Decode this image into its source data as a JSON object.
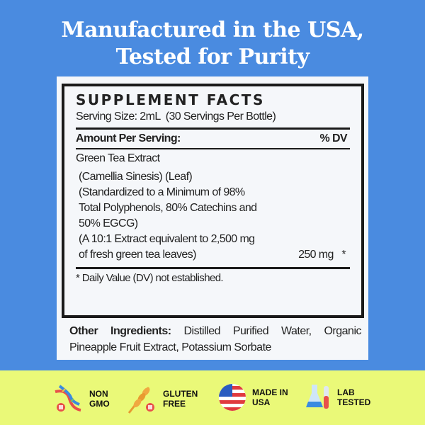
{
  "headline": {
    "line1": "Manufactured in the USA,",
    "line2": "Tested for Purity"
  },
  "facts": {
    "title": "SUPPLEMENT FACTS",
    "serving": "Serving Size: 2mL  (30 Servings Per Bottle)",
    "amount_header": "Amount Per Serving:",
    "dv_header": "% DV",
    "ingredient": "Green Tea Extract",
    "details": [
      "(Camellia Sinesis) (Leaf)",
      "(Standardized to a Minimum of 98%",
      "Total Polyphenols, 80% Catechins and",
      "50% EGCG)",
      "(A 10:1 Extract equivalent to 2,500 mg",
      "of fresh green tea leaves)"
    ],
    "amount": "250 mg   *",
    "footnote": "* Daily Value (DV) not established."
  },
  "other": {
    "label": "Other Ingredients:",
    "text": " Distilled Purified Water, Organic Pineapple Fruit Extract, Potassium Sorbate"
  },
  "badges": [
    {
      "icon": "dna-icon",
      "l1": "NON",
      "l2": "GMO"
    },
    {
      "icon": "wheat-icon",
      "l1": "GLUTEN",
      "l2": "FREE"
    },
    {
      "icon": "us-flag-icon",
      "l1": "MADE IN",
      "l2": "USA"
    },
    {
      "icon": "lab-flask-icon",
      "l1": "LAB",
      "l2": "TESTED"
    }
  ],
  "colors": {
    "background": "#4a8be0",
    "band": "#eaf978",
    "panel": "#f5f7fa"
  }
}
